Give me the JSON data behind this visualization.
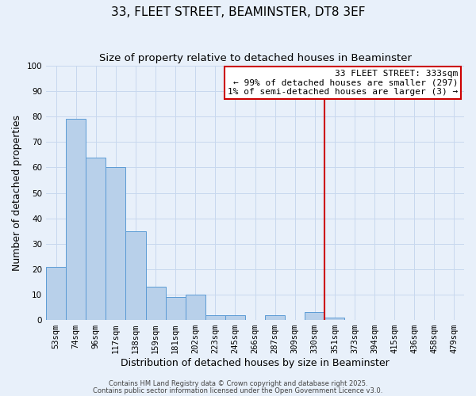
{
  "title": "33, FLEET STREET, BEAMINSTER, DT8 3EF",
  "subtitle": "Size of property relative to detached houses in Beaminster",
  "xlabel": "Distribution of detached houses by size in Beaminster",
  "ylabel": "Number of detached properties",
  "bar_labels": [
    "53sqm",
    "74sqm",
    "96sqm",
    "117sqm",
    "138sqm",
    "159sqm",
    "181sqm",
    "202sqm",
    "223sqm",
    "245sqm",
    "266sqm",
    "287sqm",
    "309sqm",
    "330sqm",
    "351sqm",
    "373sqm",
    "394sqm",
    "415sqm",
    "436sqm",
    "458sqm",
    "479sqm"
  ],
  "bar_values": [
    21,
    79,
    64,
    60,
    35,
    13,
    9,
    10,
    2,
    2,
    0,
    2,
    0,
    3,
    1,
    0,
    0,
    0,
    0,
    0,
    0
  ],
  "bar_color": "#b8d0ea",
  "bar_edge_color": "#5b9bd5",
  "vline_x_index": 13,
  "vline_color": "#cc0000",
  "annotation_title": "33 FLEET STREET: 333sqm",
  "annotation_line1": "← 99% of detached houses are smaller (297)",
  "annotation_line2": "1% of semi-detached houses are larger (3) →",
  "annotation_box_edge_color": "#cc0000",
  "ylim": [
    0,
    100
  ],
  "yticks": [
    0,
    10,
    20,
    30,
    40,
    50,
    60,
    70,
    80,
    90,
    100
  ],
  "grid_color": "#c8d8ee",
  "bg_color": "#e8f0fa",
  "footer1": "Contains HM Land Registry data © Crown copyright and database right 2025.",
  "footer2": "Contains public sector information licensed under the Open Government Licence v3.0.",
  "title_fontsize": 11,
  "subtitle_fontsize": 9.5,
  "xlabel_fontsize": 9,
  "ylabel_fontsize": 9,
  "tick_fontsize": 7.5,
  "annotation_fontsize": 8,
  "footer_fontsize": 6
}
